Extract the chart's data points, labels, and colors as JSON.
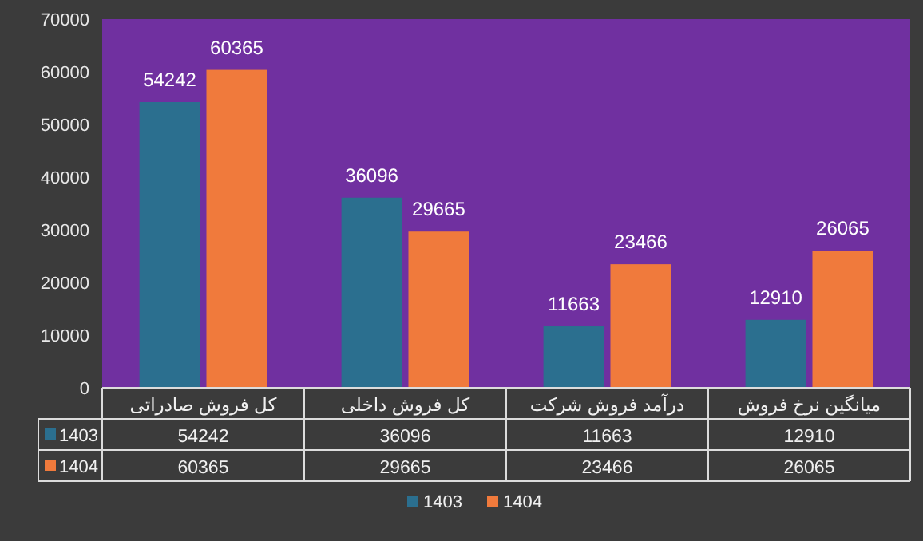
{
  "chart_data": {
    "type": "bar",
    "categories": [
      "کل فروش صادراتی",
      "کل فروش داخلی",
      "درآمد فروش شرکت",
      "میانگین نرخ فروش"
    ],
    "series": [
      {
        "name": "1403",
        "color": "#2b6f8f",
        "values": [
          54242,
          36096,
          11663,
          12910
        ],
        "value_labels": [
          "54242",
          "36096",
          "11663",
          "12910"
        ]
      },
      {
        "name": "1404",
        "color": "#f07a3c",
        "values": [
          60365,
          29665,
          23466,
          26065
        ],
        "value_labels": [
          "60365",
          "29665",
          "23466",
          "26065"
        ]
      }
    ],
    "ylim": [
      0,
      70000
    ],
    "yticks": [
      0,
      10000,
      20000,
      30000,
      40000,
      50000,
      60000,
      70000
    ],
    "annotations": [
      "54242",
      "36096",
      "11663",
      "12910",
      "60365",
      "29665",
      "23466",
      "26065"
    ],
    "legend": "bottom"
  }
}
